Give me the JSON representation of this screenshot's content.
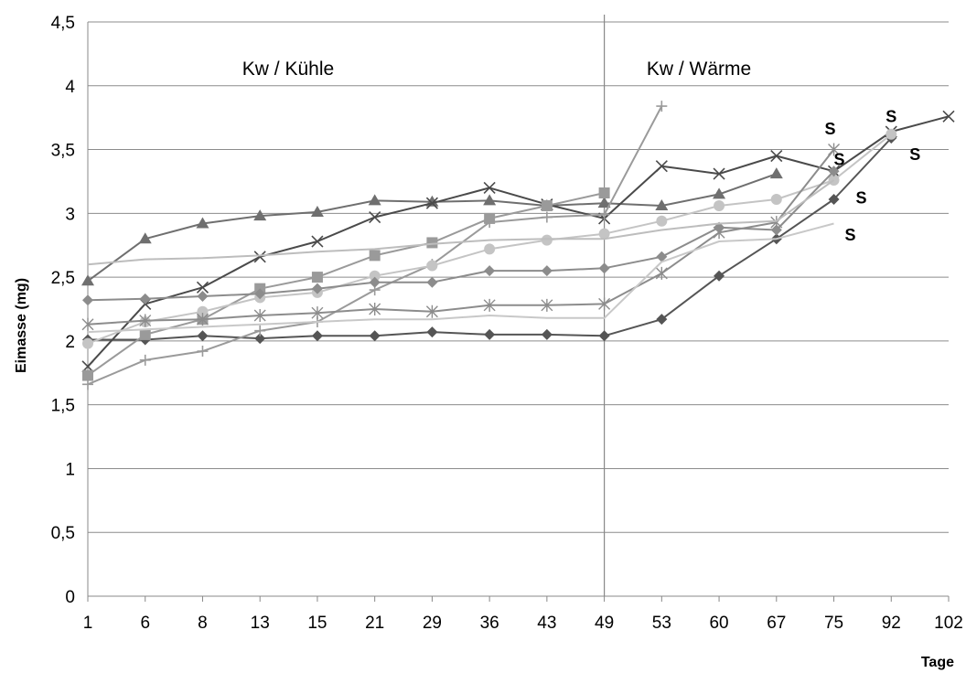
{
  "chart_data": {
    "type": "line",
    "xlabel": "Tage",
    "ylabel": "Eimasse (mg)",
    "x_categories": [
      "1",
      "6",
      "8",
      "13",
      "15",
      "21",
      "29",
      "36",
      "43",
      "49",
      "53",
      "60",
      "67",
      "75",
      "92",
      "102"
    ],
    "yticks": [
      "0",
      "0,5",
      "1",
      "1,5",
      "2",
      "2,5",
      "3",
      "3,5",
      "4",
      "4,5"
    ],
    "ylim": [
      0,
      4.5
    ],
    "grid": true,
    "legend": "none",
    "divider_category": "49",
    "region_labels": [
      "Kw / Kühle",
      "Kw / Wärme"
    ],
    "series": [
      {
        "marker": "diamond",
        "color": "#555555",
        "values": [
          2.01,
          2.01,
          2.04,
          2.02,
          2.04,
          2.04,
          2.07,
          2.05,
          2.05,
          2.04,
          2.17,
          2.51,
          2.8,
          3.11,
          3.59,
          null
        ]
      },
      {
        "marker": "triangle",
        "color": "#6f6f6f",
        "values": [
          2.47,
          2.8,
          2.92,
          2.98,
          3.01,
          3.1,
          3.09,
          3.1,
          3.06,
          3.08,
          3.06,
          3.15,
          3.31,
          null,
          null,
          null
        ]
      },
      {
        "marker": "x",
        "color": "#4a4a4a",
        "values": [
          1.8,
          2.29,
          2.42,
          2.66,
          2.78,
          2.97,
          3.08,
          3.2,
          3.07,
          2.96,
          3.37,
          3.31,
          3.45,
          3.33,
          3.64,
          3.76
        ]
      },
      {
        "marker": "square",
        "color": "#9a9a9a",
        "values": [
          1.73,
          2.05,
          2.17,
          2.41,
          2.5,
          2.67,
          2.77,
          2.96,
          3.06,
          3.16,
          null,
          null,
          null,
          null,
          null,
          null
        ]
      },
      {
        "marker": "plus",
        "color": "#9a9a9a",
        "values": [
          1.66,
          1.85,
          1.92,
          2.08,
          2.15,
          2.4,
          2.6,
          2.93,
          2.97,
          2.99,
          3.84,
          null,
          null,
          null,
          null,
          null
        ]
      },
      {
        "marker": "circle",
        "color": "#c4c4c4",
        "values": [
          1.98,
          2.15,
          2.23,
          2.34,
          2.38,
          2.51,
          2.59,
          2.72,
          2.79,
          2.84,
          2.94,
          3.06,
          3.11,
          3.26,
          3.62,
          null
        ]
      },
      {
        "marker": "diamond",
        "color": "#8c8c8c",
        "values": [
          2.32,
          2.33,
          2.35,
          2.37,
          2.41,
          2.46,
          2.46,
          2.55,
          2.55,
          2.57,
          2.66,
          2.89,
          2.87,
          3.33,
          null,
          null
        ]
      },
      {
        "marker": "star",
        "color": "#8c8c8c",
        "values": [
          2.13,
          2.16,
          2.17,
          2.2,
          2.22,
          2.25,
          2.23,
          2.28,
          2.28,
          2.29,
          2.53,
          2.85,
          2.93,
          3.5,
          null,
          null
        ]
      },
      {
        "marker": "none",
        "color": "#bdbdbd",
        "values": [
          2.6,
          2.64,
          2.65,
          2.67,
          2.7,
          2.72,
          2.76,
          2.79,
          2.8,
          2.8,
          2.87,
          2.92,
          2.94,
          3.26,
          null,
          null
        ]
      },
      {
        "marker": "none",
        "color": "#c8c8c8",
        "values": [
          2.07,
          2.09,
          2.11,
          2.13,
          2.15,
          2.17,
          2.17,
          2.2,
          2.18,
          2.18,
          2.62,
          2.78,
          2.8,
          2.92,
          null,
          null
        ]
      }
    ],
    "annotations": [
      {
        "text": "S",
        "x_category": "75",
        "y": 3.66
      },
      {
        "text": "S",
        "x_category": "75",
        "y": 3.42
      },
      {
        "text": "S",
        "x_category": "75",
        "y": 3.12
      },
      {
        "text": "S",
        "x_category": "75",
        "y": 2.83
      },
      {
        "text": "S",
        "x_category": "92",
        "y": 3.76
      },
      {
        "text": "S",
        "x_category": "92",
        "y": 3.46
      }
    ]
  }
}
